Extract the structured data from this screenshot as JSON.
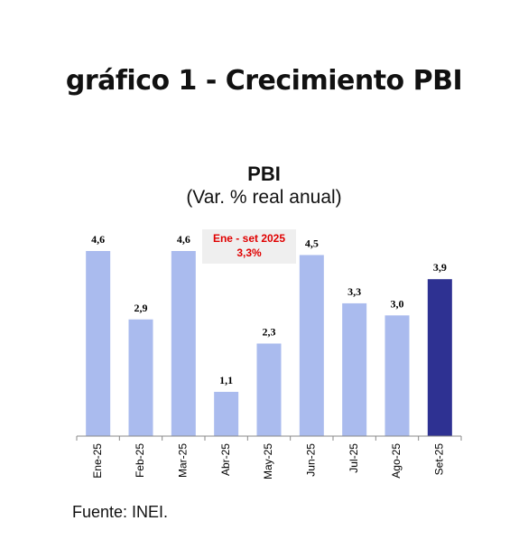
{
  "page_title": "gráfico 1 - Crecimiento PBI",
  "source": "Fuente: INEI.",
  "chart_data": {
    "type": "bar",
    "title": "PBI",
    "subtitle": "(Var. % real anual)",
    "xlabel": "",
    "ylabel": "",
    "categories": [
      "Ene-25",
      "Feb-25",
      "Mar-25",
      "Abr-25",
      "May-25",
      "Jun-25",
      "Jul-25",
      "Ago-25",
      "Set-25"
    ],
    "values": [
      4.6,
      2.9,
      4.6,
      1.1,
      2.3,
      4.5,
      3.3,
      3.0,
      3.9
    ],
    "value_labels": [
      "4,6",
      "2,9",
      "4,6",
      "1,1",
      "2,3",
      "4,5",
      "3,3",
      "3,0",
      "3,9"
    ],
    "ylim": [
      0,
      4.6
    ],
    "grid": false,
    "colors": {
      "bar": "#aabbee",
      "highlight_bar": "#2e3192",
      "annotation_text": "#e00000",
      "annotation_bg": "#efefef"
    },
    "highlight_index": 8,
    "annotation": {
      "line1": "Ene - set 2025",
      "line2": "3,3%"
    }
  }
}
